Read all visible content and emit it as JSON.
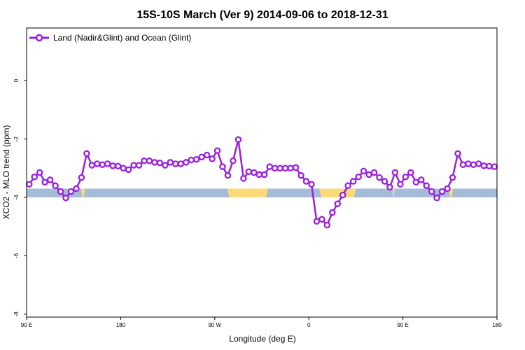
{
  "chart_data": {
    "type": "line",
    "title": "15S-10S March (Ver 9)   2014-09-06 to 2018-12-31",
    "xlabel": "Longitude (deg E)",
    "ylabel": "XCO2 - MLO trend (ppm)",
    "x_ticks": [
      {
        "value": 90,
        "label": "90 E"
      },
      {
        "value": 180,
        "label": "180"
      },
      {
        "value": 270,
        "label": "90 W"
      },
      {
        "value": 360,
        "label": "0"
      },
      {
        "value": 450,
        "label": "90 E"
      },
      {
        "value": 540,
        "label": "180"
      }
    ],
    "y_ticks": [
      {
        "value": 0,
        "label": "0"
      },
      {
        "value": -2,
        "label": "-2"
      },
      {
        "value": -4,
        "label": "-4"
      },
      {
        "value": -6,
        "label": "-6"
      },
      {
        "value": -8,
        "label": "-8"
      }
    ],
    "xlim": [
      90,
      540
    ],
    "ylim": [
      -8.1,
      1.8
    ],
    "grid": false,
    "legend_position": "top-left",
    "series": [
      {
        "name": "Land (Nadir&Glint) and Ocean (Glint)",
        "color": "#9b1fe0",
        "marker": "circle",
        "x": [
          92.5,
          97.5,
          102.5,
          107.5,
          112.5,
          117.5,
          122.5,
          127.5,
          132.5,
          137.5,
          142.5,
          147.5,
          152.5,
          157.5,
          162.5,
          167.5,
          172.5,
          177.5,
          182.5,
          187.5,
          192.5,
          197.5,
          202.5,
          207.5,
          212.5,
          217.5,
          222.5,
          227.5,
          232.5,
          237.5,
          242.5,
          247.5,
          252.5,
          257.5,
          262.5,
          267.5,
          272.5,
          277.5,
          282.5,
          287.5,
          292.5,
          297.5,
          302.5,
          307.5,
          312.5,
          317.5,
          322.5,
          327.5,
          332.5,
          337.5,
          342.5,
          347.5,
          352.5,
          357.5,
          362.5,
          367.5,
          372.5,
          377.5,
          382.5,
          387.5,
          392.5,
          397.5,
          402.5,
          407.5,
          412.5,
          417.5,
          422.5,
          427.5,
          432.5,
          437.5,
          442.5,
          447.5,
          452.5,
          457.5,
          462.5,
          467.5,
          472.5,
          477.5,
          482.5,
          487.5,
          492.5,
          497.5,
          502.5,
          507.5,
          512.5,
          517.5,
          522.5,
          527.5,
          532.5,
          537.5
        ],
        "y": [
          -3.55,
          -3.3,
          -3.15,
          -3.48,
          -3.4,
          -3.6,
          -3.8,
          -4.02,
          -3.8,
          -3.7,
          -3.32,
          -2.5,
          -2.9,
          -2.85,
          -2.88,
          -2.85,
          -2.92,
          -2.93,
          -3.0,
          -3.05,
          -2.9,
          -2.9,
          -2.75,
          -2.75,
          -2.8,
          -2.82,
          -2.9,
          -2.8,
          -2.85,
          -2.85,
          -2.8,
          -2.72,
          -2.7,
          -2.62,
          -2.55,
          -2.68,
          -2.4,
          -2.95,
          -3.25,
          -2.75,
          -2.02,
          -3.35,
          -3.12,
          -3.15,
          -3.22,
          -3.22,
          -2.95,
          -3.0,
          -3.0,
          -3.0,
          -3.0,
          -2.98,
          -3.25,
          -3.45,
          -3.55,
          -4.82,
          -4.75,
          -4.95,
          -4.52,
          -4.22,
          -3.92,
          -3.6,
          -3.45,
          -3.3,
          -3.1,
          -3.22,
          -3.15,
          -3.32,
          -3.45,
          -3.65,
          -3.15,
          -3.55,
          -3.3,
          -3.15,
          -3.48,
          -3.4,
          -3.6,
          -3.8,
          -4.02,
          -3.8,
          -3.7,
          -3.32,
          -2.5,
          -2.88,
          -2.85,
          -2.88,
          -2.85,
          -2.92,
          -2.93,
          -2.95
        ]
      }
    ],
    "surface_bar": {
      "y_center": -3.85,
      "height": 0.3,
      "ocean_color": "#a5bcd8",
      "land_color": "#fdda78",
      "land_segments": [
        [
          142,
          146
        ],
        [
          282,
          321
        ],
        [
          370,
          405
        ],
        [
          440,
          442
        ],
        [
          494,
          498
        ]
      ]
    }
  }
}
